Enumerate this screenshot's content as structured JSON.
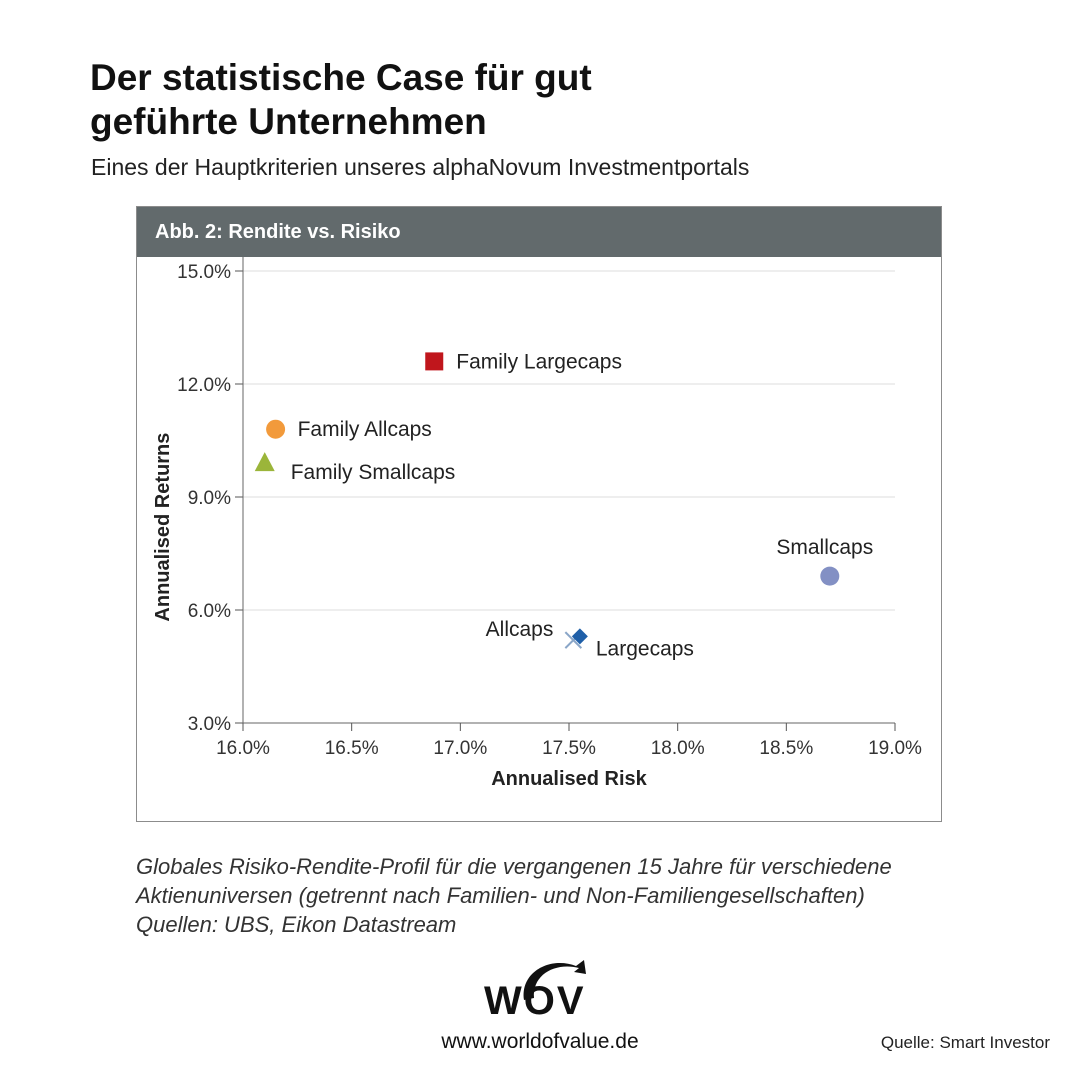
{
  "header": {
    "title_line1": "Der statistische Case für gut",
    "title_line2": "geführte Unternehmen",
    "subtitle": "Eines der Hauptkriterien unseres alphaNovum Investmentportals"
  },
  "chart_data": {
    "type": "scatter",
    "title": "Abb. 2: Rendite vs. Risiko",
    "xlabel": "Annualised Risk",
    "ylabel": "Annualised Returns",
    "xlim": [
      16.0,
      19.0
    ],
    "ylim": [
      3.0,
      15.0
    ],
    "x_ticks": [
      "16.0%",
      "16.5%",
      "17.0%",
      "17.5%",
      "18.0%",
      "18.5%",
      "19.0%"
    ],
    "y_ticks": [
      "3.0%",
      "6.0%",
      "9.0%",
      "12.0%",
      "15.0%"
    ],
    "grid": "horizontal",
    "points": [
      {
        "label": "Family Largecaps",
        "x": 16.88,
        "y": 12.6,
        "marker": "square",
        "color": "#c0161c",
        "label_pos": "right"
      },
      {
        "label": "Family Allcaps",
        "x": 16.15,
        "y": 10.8,
        "marker": "circle",
        "color": "#f29a3b",
        "label_pos": "right"
      },
      {
        "label": "Family Smallcaps",
        "x": 16.1,
        "y": 9.9,
        "marker": "triangle",
        "color": "#9bb53a",
        "label_pos": "right-below"
      },
      {
        "label": "Smallcaps",
        "x": 18.7,
        "y": 6.9,
        "marker": "circle",
        "color": "#8390c4",
        "label_pos": "above"
      },
      {
        "label": "Allcaps",
        "x": 17.52,
        "y": 5.2,
        "marker": "x",
        "color": "#8aa6c8",
        "label_pos": "left-above"
      },
      {
        "label": "Largecaps",
        "x": 17.55,
        "y": 5.3,
        "marker": "diamond",
        "color": "#1f5fa8",
        "label_pos": "right-below"
      }
    ]
  },
  "caption": {
    "line1": "Globales Risiko-Rendite-Profil für die vergangenen 15 Jahre für verschiedene",
    "line2": "Aktienuniversen (getrennt nach Familien- und Non-Familiengesellschaften)",
    "line3": "Quellen: UBS, Eikon Datastream"
  },
  "footer": {
    "logo_text": "WOV",
    "website": "www.worldofvalue.de",
    "source": "Quelle: Smart Investor"
  }
}
